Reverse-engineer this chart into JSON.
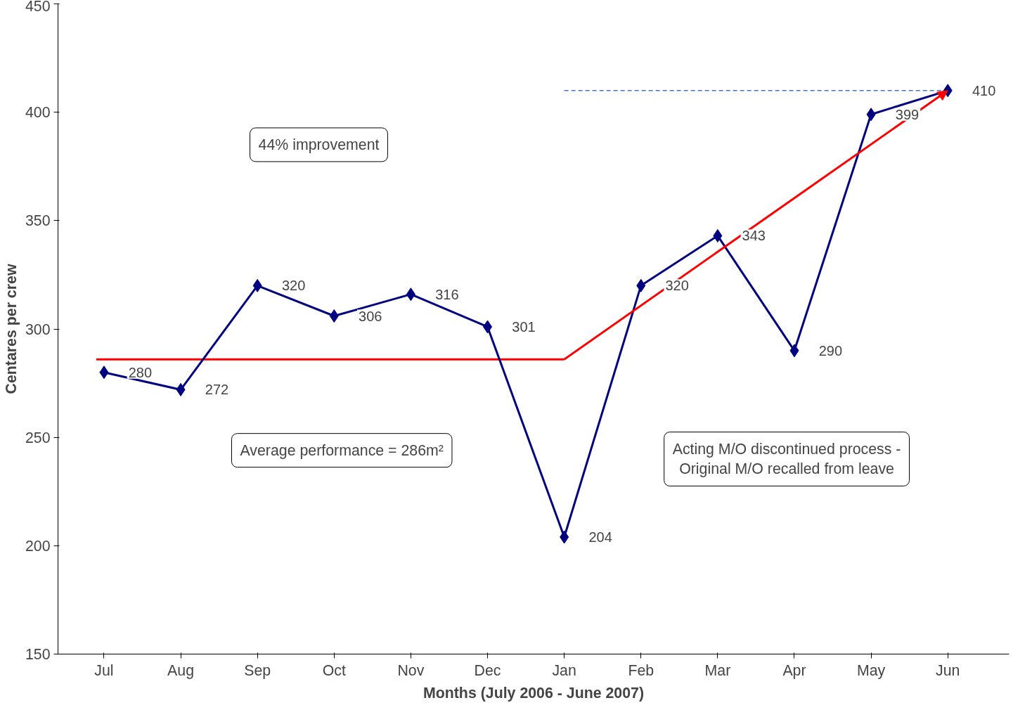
{
  "chart_data": {
    "type": "line",
    "xlabel": "Months (July 2006 - June 2007)",
    "ylabel": "Centares per crew",
    "categories": [
      "Jul",
      "Aug",
      "Sep",
      "Oct",
      "Nov",
      "Dec",
      "Jan",
      "Feb",
      "Mar",
      "Apr",
      "May",
      "Jun"
    ],
    "series": [
      {
        "color": "#000080",
        "values": [
          280,
          272,
          320,
          306,
          316,
          301,
          204,
          320,
          343,
          290,
          399,
          410
        ],
        "marker": "diamond"
      }
    ],
    "ylim": [
      150,
      450
    ],
    "yticks": [
      150,
      200,
      250,
      300,
      350,
      400,
      450
    ],
    "grid": false,
    "data_labels": true,
    "ref_lines": [
      {
        "axis": "y",
        "value": 410,
        "color": "#4472c4",
        "line_style": "dashed"
      },
      {
        "axis": "y",
        "value": 286,
        "color": "#ff0000",
        "line_style": "solid"
      }
    ],
    "annotations": [
      "44% improvement",
      "Average performance = 286m²",
      "Acting M/O discontinued process -\nOriginal M/O recalled from leave"
    ]
  }
}
